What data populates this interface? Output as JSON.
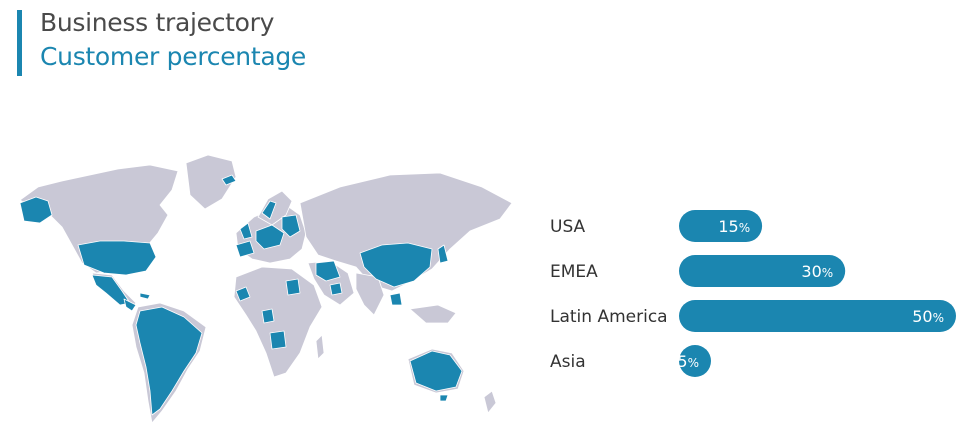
{
  "header": {
    "title": "Business trajectory",
    "subtitle": "Customer percentage"
  },
  "colors": {
    "accent": "#1b86b0",
    "land": "#c9c8d6",
    "highlight": "#1b86b0",
    "title_text": "#4a4a4a",
    "label_text": "#333333",
    "bar_label": "#ffffff"
  },
  "map": {
    "highlighted_regions": [
      "USA",
      "Latin America",
      "Europe",
      "Middle East",
      "China",
      "Australia",
      "Southern Africa"
    ]
  },
  "chart_data": {
    "type": "bar",
    "orientation": "horizontal",
    "categories": [
      "USA",
      "EMEA",
      "Latin America",
      "Asia"
    ],
    "values": [
      15,
      30,
      50,
      5
    ],
    "unit": "%",
    "grid": false
  }
}
